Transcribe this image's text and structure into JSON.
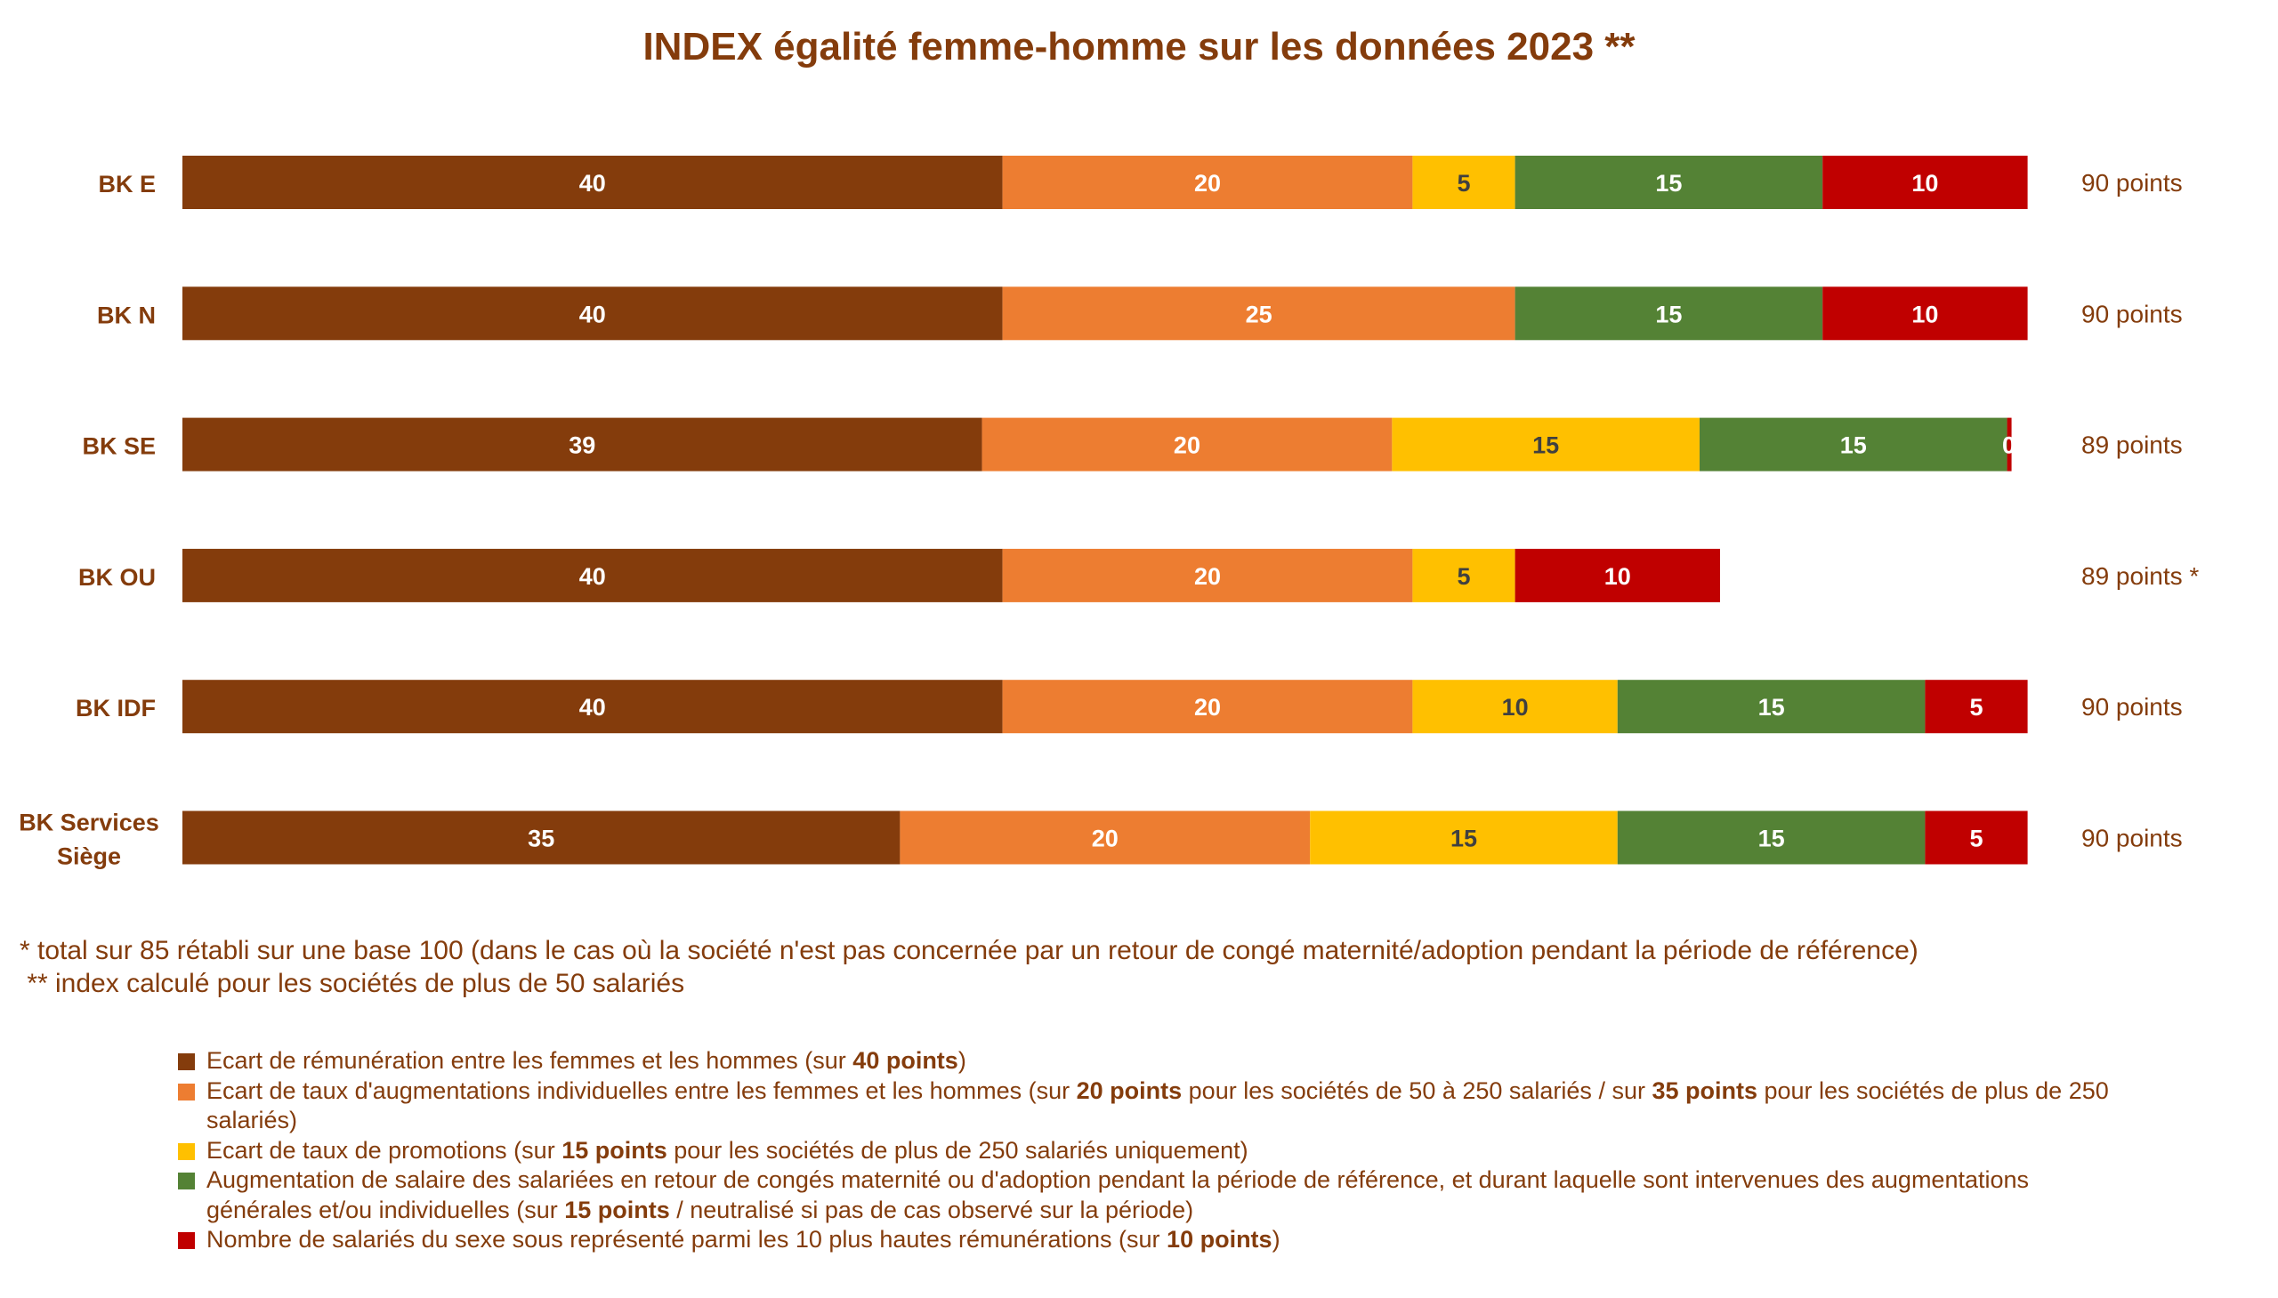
{
  "chart_data": {
    "type": "bar",
    "orientation": "horizontal-stacked",
    "title": "INDEX égalité femme-homme sur les données 2023 **",
    "categories": [
      "BK E",
      "BK N",
      "BK SE",
      "BK OU",
      "BK IDF",
      "BK Services Siège"
    ],
    "series": [
      {
        "name": "Ecart de rémunération entre les femmes et les hommes",
        "color": "#843C0C",
        "label_color": "#FFFFFF",
        "values": [
          40,
          40,
          39,
          40,
          40,
          35
        ]
      },
      {
        "name": "Ecart de taux d'augmentations individuelles",
        "color": "#ED7D31",
        "label_color": "#FFFFFF",
        "values": [
          20,
          25,
          20,
          20,
          20,
          20
        ]
      },
      {
        "name": "Ecart de taux de promotions",
        "color": "#FFC000",
        "label_color": "#404040",
        "values": [
          5,
          null,
          15,
          5,
          10,
          15
        ]
      },
      {
        "name": "Augmentation de salaire au retour de congé maternité",
        "color": "#548235",
        "label_color": "#FFFFFF",
        "values": [
          15,
          15,
          15,
          null,
          15,
          15
        ]
      },
      {
        "name": "Nombre de salariés du sexe sous représenté parmi les 10 plus hautes rémunérations",
        "color": "#C00000",
        "label_color": "#FFFFFF",
        "values": [
          10,
          10,
          0,
          10,
          5,
          5
        ]
      }
    ],
    "totals": [
      "90 points",
      "90 points",
      "89 points",
      "89 points *",
      "90 points",
      "90 points"
    ],
    "xlim": [
      0,
      100
    ],
    "grid": false
  },
  "footnotes": [
    "* total sur 85 rétabli sur une base 100 (dans le cas où la société n'est pas concernée par un retour de congé maternité/adoption pendant la période de référence)",
    " ** index calculé pour les sociétés de plus de 50 salariés"
  ],
  "legend": [
    {
      "color": "#843C0C",
      "parts": [
        {
          "t": "Ecart de rémunération entre les femmes et les hommes (sur "
        },
        {
          "t": "40 points",
          "b": true
        },
        {
          "t": ")"
        }
      ]
    },
    {
      "color": "#ED7D31",
      "parts": [
        {
          "t": "Ecart de taux d'augmentations individuelles entre les femmes et les hommes (sur "
        },
        {
          "t": "20 points",
          "b": true
        },
        {
          "t": " pour les sociétés de 50 à 250 salariés / sur "
        },
        {
          "t": "35 points",
          "b": true
        },
        {
          "t": " pour les sociétés de plus de 250 salariés)"
        }
      ]
    },
    {
      "color": "#FFC000",
      "parts": [
        {
          "t": "Ecart de taux de promotions (sur "
        },
        {
          "t": "15 points",
          "b": true
        },
        {
          "t": " pour les sociétés de plus de 250 salariés uniquement)"
        }
      ]
    },
    {
      "color": "#548235",
      "parts": [
        {
          "t": "Augmentation de salaire des salariées en retour de congés maternité ou d'adoption pendant la période de référence, et durant laquelle sont intervenues des augmentations générales et/ou individuelles (sur "
        },
        {
          "t": "15 points",
          "b": true
        },
        {
          "t": " / neutralisé si pas de cas observé sur la période)"
        }
      ]
    },
    {
      "color": "#C00000",
      "parts": [
        {
          "t": "Nombre de salariés du sexe sous représenté parmi les 10 plus hautes rémunérations (sur "
        },
        {
          "t": "10 points",
          "b": true
        },
        {
          "t": ")"
        }
      ]
    }
  ]
}
